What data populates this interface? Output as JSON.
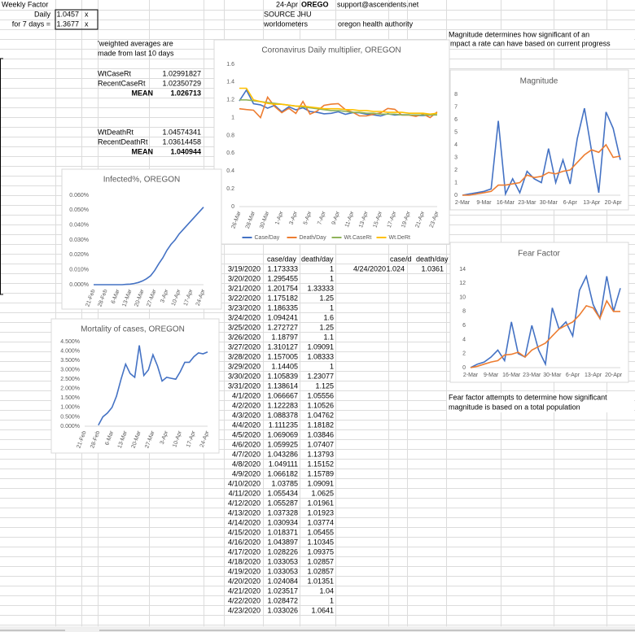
{
  "cells": {
    "weekly_factor": "Weekly Factor",
    "daily_label": "Daily",
    "daily_value": 1.0457,
    "daily_unit": "x",
    "week_label": "for 7 days =",
    "week_value": 1.3677,
    "week_unit": "x",
    "date": "24-Apr",
    "state": "OREGO",
    "email": "support@ascendents.net",
    "source_1": "SOURCE JHU",
    "source_2": "worldometers",
    "source_3": "oregon health authority",
    "magnitude_note": [
      "Magnitude determines how significant of an",
      "impact a rate can have based on current progress"
    ],
    "weighted_note": [
      "'weighted averages are",
      "made from last 10 days"
    ],
    "fear_note": [
      "Fear factor attempts to determine how significant",
      "magnitude is based on a total population"
    ]
  },
  "averages": {
    "case": [
      [
        "WtCaseRt",
        1.02991827
      ],
      [
        "RecentCaseRt",
        1.02350729
      ],
      [
        "MEAN",
        1.026713
      ]
    ],
    "death": [
      [
        "WtDeathRt",
        1.04574341
      ],
      [
        "RecentDeathRt",
        1.03614458
      ],
      [
        "MEAN",
        1.040944
      ]
    ]
  },
  "table": {
    "header": [
      "case/day",
      "death/day"
    ],
    "rows": [
      [
        "3/19/2020",
        1.173333,
        1
      ],
      [
        "3/20/2020",
        1.295455,
        1
      ],
      [
        "3/21/2020",
        1.201754,
        1.33333
      ],
      [
        "3/22/2020",
        1.175182,
        1.25
      ],
      [
        "3/23/2020",
        1.186335,
        1
      ],
      [
        "3/24/2020",
        1.094241,
        1.6
      ],
      [
        "3/25/2020",
        1.272727,
        1.25
      ],
      [
        "3/26/2020",
        1.18797,
        1.1
      ],
      [
        "3/27/2020",
        1.310127,
        1.09091
      ],
      [
        "3/28/2020",
        1.157005,
        1.08333
      ],
      [
        "3/29/2020",
        1.14405,
        1
      ],
      [
        "3/30/2020",
        1.105839,
        1.23077
      ],
      [
        "3/31/2020",
        1.138614,
        1.125
      ],
      [
        "4/1/2020",
        1.066667,
        1.05556
      ],
      [
        "4/2/2020",
        1.122283,
        1.10526
      ],
      [
        "4/3/2020",
        1.088378,
        1.04762
      ],
      [
        "4/4/2020",
        1.111235,
        1.18182
      ],
      [
        "4/5/2020",
        1.069069,
        1.03846
      ],
      [
        "4/6/2020",
        1.059925,
        1.07407
      ],
      [
        "4/7/2020",
        1.043286,
        1.13793
      ],
      [
        "4/8/2020",
        1.049111,
        1.15152
      ],
      [
        "4/9/2020",
        1.066182,
        1.15789
      ],
      [
        "4/10/2020",
        1.03785,
        1.09091
      ],
      [
        "4/11/2020",
        1.055434,
        1.0625
      ],
      [
        "4/12/2020",
        1.055287,
        1.01961
      ],
      [
        "4/13/2020",
        1.037328,
        1.01923
      ],
      [
        "4/14/2020",
        1.030934,
        1.03774
      ],
      [
        "4/15/2020",
        1.018371,
        1.05455
      ],
      [
        "4/16/2020",
        1.043897,
        1.10345
      ],
      [
        "4/17/2020",
        1.028226,
        1.09375
      ],
      [
        "4/18/2020",
        1.033053,
        1.02857
      ],
      [
        "4/19/2020",
        1.033053,
        1.02857
      ],
      [
        "4/20/2020",
        1.024084,
        1.01351
      ],
      [
        "4/21/2020",
        1.023517,
        1.04
      ],
      [
        "4/22/2020",
        1.028472,
        1
      ],
      [
        "4/23/2020",
        1.033026,
        1.0641
      ]
    ]
  },
  "forecast": {
    "header": [
      "case/d",
      "death/day"
    ],
    "rows": [
      [
        "4/24/2020",
        1.024,
        1.0361
      ]
    ]
  },
  "chart_data": [
    {
      "type": "line",
      "title": "Coronavirus Daily multiplier, OREGON",
      "categories": [
        "26-Mar",
        null,
        "28-Mar",
        null,
        "30-Mar",
        null,
        "1-Apr",
        null,
        "3-Apr",
        null,
        "5-Apr",
        null,
        "7-Apr",
        null,
        "9-Apr",
        null,
        "11-Apr",
        null,
        "13-Apr",
        null,
        "15-Apr",
        null,
        "17-Apr",
        null,
        "19-Apr",
        null,
        "21-Apr",
        null,
        "23-Apr"
      ],
      "series": [
        {
          "name": "Case/Day",
          "color": "#4472c4",
          "values": [
            1.18797,
            1.310127,
            1.157005,
            1.14405,
            1.105839,
            1.138614,
            1.066667,
            1.122283,
            1.088378,
            1.111235,
            1.069069,
            1.059925,
            1.043286,
            1.049111,
            1.066182,
            1.03785,
            1.055434,
            1.055287,
            1.037328,
            1.030934,
            1.018371,
            1.043897,
            1.028226,
            1.033053,
            1.033053,
            1.024084,
            1.023517,
            1.028472,
            1.033026
          ]
        },
        {
          "name": "Death/Day",
          "color": "#ed7d31",
          "values": [
            1.1,
            1.09091,
            1.08333,
            1,
            1.23077,
            1.125,
            1.05556,
            1.10526,
            1.04762,
            1.18182,
            1.03846,
            1.07407,
            1.13793,
            1.15152,
            1.15789,
            1.09091,
            1.0625,
            1.01961,
            1.01923,
            1.03774,
            1.05455,
            1.10345,
            1.09375,
            1.02857,
            1.02857,
            1.01351,
            1.04,
            1,
            1.0641
          ]
        },
        {
          "name": "Wt.CaseRt",
          "color": "#8fb35a",
          "values": [
            1.2,
            1.2,
            1.19,
            1.18,
            1.17,
            1.16,
            1.15,
            1.14,
            1.13,
            1.12,
            1.11,
            1.1,
            1.09,
            1.08,
            1.08,
            1.07,
            1.06,
            1.06,
            1.05,
            1.05,
            1.04,
            1.04,
            1.04,
            1.03,
            1.03,
            1.03,
            1.03,
            1.03,
            1.03
          ]
        },
        {
          "name": "Wt.DeRt",
          "color": "#ffc000",
          "values": [
            1.33,
            1.33,
            1.2,
            1.18,
            1.16,
            1.15,
            1.15,
            1.14,
            1.13,
            1.13,
            1.12,
            1.11,
            1.1,
            1.1,
            1.1,
            1.09,
            1.09,
            1.08,
            1.08,
            1.07,
            1.07,
            1.06,
            1.06,
            1.06,
            1.05,
            1.05,
            1.05,
            1.04,
            1.05
          ]
        }
      ],
      "ylim": [
        0,
        1.6
      ],
      "yticks": [
        0,
        0.2,
        0.4,
        0.6,
        0.8,
        1,
        1.2,
        1.4,
        1.6
      ],
      "grid": false,
      "legend": "bottom"
    },
    {
      "type": "line",
      "title": "Infected%, OREGON",
      "categories": [
        "21-Feb",
        null,
        null,
        "28-Feb",
        null,
        null,
        "6-Mar",
        null,
        null,
        "13-Mar",
        null,
        null,
        "20-Mar",
        null,
        null,
        "27-Mar",
        null,
        null,
        "3-Apr",
        null,
        null,
        "10-Apr",
        null,
        null,
        "17-Apr",
        null,
        null,
        "24-Apr"
      ],
      "series": [
        {
          "color": "#4472c4",
          "values": [
            0,
            0,
            0,
            0,
            0,
            0,
            0,
            0,
            0.0002,
            0.0004,
            0.0008,
            0.0015,
            0.0025,
            0.004,
            0.006,
            0.0095,
            0.014,
            0.018,
            0.023,
            0.027,
            0.03,
            0.034,
            0.037,
            0.04,
            0.043,
            0.046,
            0.049,
            0.052
          ]
        }
      ],
      "ylim": [
        0,
        0.06
      ],
      "yticks": [
        {
          "value": 0,
          "label": "0.000%"
        },
        {
          "value": 0.01,
          "label": "0.010%"
        },
        {
          "value": 0.02,
          "label": "0.020%"
        },
        {
          "value": 0.03,
          "label": "0.030%"
        },
        {
          "value": 0.04,
          "label": "0.040%"
        },
        {
          "value": 0.05,
          "label": "0.050%"
        },
        {
          "value": 0.06,
          "label": "0.060%"
        }
      ],
      "grid": false
    },
    {
      "type": "line",
      "title": "Mortality of cases, OREGON",
      "categories": [
        "21-Feb",
        null,
        null,
        "28-Feb",
        null,
        null,
        "6-Mar",
        null,
        null,
        "13-Mar",
        null,
        null,
        "20-Mar",
        null,
        null,
        "27-Mar",
        null,
        null,
        "3-Apr",
        null,
        null,
        "10-Apr",
        null,
        null,
        "17-Apr",
        null,
        null,
        "24-Apr"
      ],
      "series": [
        {
          "color": "#4472c4",
          "values": [
            null,
            null,
            null,
            0.05,
            0.5,
            0.7,
            1.0,
            1.6,
            2.5,
            3.3,
            2.8,
            2.6,
            4.3,
            2.7,
            3.0,
            3.8,
            3.2,
            2.4,
            2.6,
            2.55,
            2.5,
            2.9,
            3.4,
            3.4,
            3.7,
            3.9,
            3.85,
            3.95
          ]
        }
      ],
      "ylim": [
        0,
        4.5
      ],
      "yticks": [
        {
          "value": 0,
          "label": "0.000%"
        },
        {
          "value": 0.5,
          "label": "0.500%"
        },
        {
          "value": 1,
          "label": "1.000%"
        },
        {
          "value": 1.5,
          "label": "1.500%"
        },
        {
          "value": 2,
          "label": "2.000%"
        },
        {
          "value": 2.5,
          "label": "2.500%"
        },
        {
          "value": 3,
          "label": "3.000%"
        },
        {
          "value": 3.5,
          "label": "3.500%"
        },
        {
          "value": 4,
          "label": "4.000%"
        },
        {
          "value": 4.5,
          "label": "4.500%"
        }
      ],
      "grid": false
    },
    {
      "type": "line",
      "title": "Magnitude",
      "categories": [
        "2-Mar",
        null,
        null,
        "9-Mar",
        null,
        null,
        "16-Mar",
        null,
        null,
        "23-Mar",
        null,
        null,
        "30-Mar",
        null,
        null,
        "6-Apr",
        null,
        null,
        "13-Apr",
        null,
        null,
        "20-Apr",
        null
      ],
      "series": [
        {
          "color": "#4472c4",
          "values": [
            0,
            0.1,
            0.2,
            0.3,
            0.5,
            5.9,
            0.1,
            1.3,
            0.2,
            1.9,
            1.3,
            1.0,
            3.7,
            1.0,
            2.8,
            0.9,
            4.5,
            6.9,
            3.5,
            0.2,
            6.6,
            5.3,
            2.8
          ]
        },
        {
          "color": "#ed7d31",
          "values": [
            0,
            0,
            0.1,
            0.2,
            0.3,
            0.8,
            0.8,
            0.9,
            1.0,
            1.6,
            1.4,
            1.5,
            1.8,
            1.7,
            1.9,
            2.0,
            2.6,
            3.2,
            3.6,
            3.4,
            4.0,
            3.0,
            3.1
          ]
        }
      ],
      "ylim": [
        0,
        8
      ],
      "yticks": [
        0,
        1,
        2,
        3,
        4,
        5,
        6,
        7,
        8
      ],
      "grid": false
    },
    {
      "type": "line",
      "title": "Fear Factor",
      "categories": [
        "2-Mar",
        null,
        null,
        "9-Mar",
        null,
        null,
        "16-Mar",
        null,
        null,
        "23-Mar",
        null,
        null,
        "30-Mar",
        null,
        null,
        "6-Apr",
        null,
        null,
        "13-Apr",
        null,
        null,
        "20-Apr",
        null
      ],
      "series": [
        {
          "color": "#4472c4",
          "values": [
            0,
            0.5,
            0.8,
            1.5,
            2.5,
            1.0,
            6.5,
            2.0,
            1.5,
            6.0,
            2.5,
            0.5,
            8.5,
            5.5,
            6.5,
            4.5,
            11.0,
            13.0,
            9.0,
            7.0,
            13.0,
            8.0,
            11.3
          ]
        },
        {
          "color": "#ed7d31",
          "values": [
            0,
            0.2,
            0.5,
            0.8,
            1.0,
            1.8,
            1.9,
            2.2,
            1.5,
            2.5,
            3.0,
            3.5,
            4.5,
            5.5,
            6.0,
            6.5,
            7.5,
            8.8,
            8.5,
            7.0,
            9.5,
            8.0,
            8.0
          ]
        }
      ],
      "ylim": [
        0,
        14
      ],
      "yticks": [
        0,
        2,
        4,
        6,
        8,
        10,
        12,
        14
      ],
      "grid": false
    }
  ]
}
